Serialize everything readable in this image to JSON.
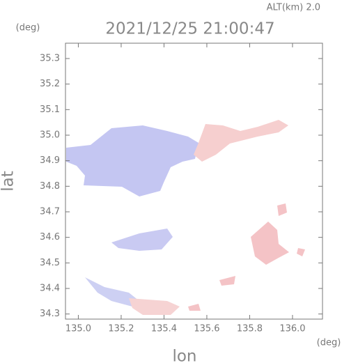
{
  "chart_data": {
    "type": "map",
    "title": "2021/12/25 21:00:47",
    "altitude_label": "ALT(km)  2.0",
    "x_label": "lon",
    "y_label": "lat",
    "x_unit": "(deg)",
    "y_unit": "(deg)",
    "xlim": [
      134.94,
      136.14
    ],
    "ylim": [
      34.28,
      35.36
    ],
    "xticks": [
      {
        "value": 135,
        "label": "135.0"
      },
      135.2,
      135.4,
      135.6,
      135.8,
      {
        "value": 136,
        "label": "136.0"
      }
    ],
    "yticks": [
      34.3,
      34.4,
      34.5,
      34.6,
      34.7,
      34.8,
      34.9,
      {
        "value": 35,
        "label": "35.0"
      },
      35.1,
      35.2,
      35.3
    ]
  }
}
